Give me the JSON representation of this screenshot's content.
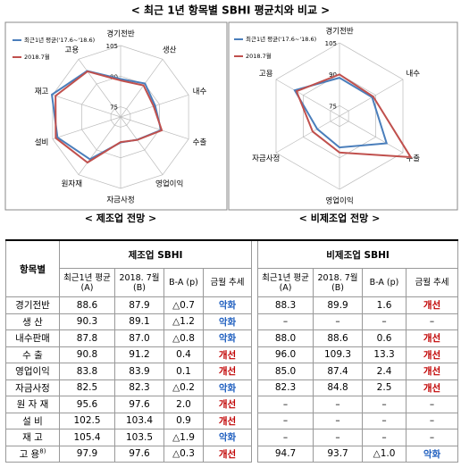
{
  "title": "< 최근 1년 항목별 SBHI 평균치와 비교 >",
  "chart_data": [
    {
      "type": "radar",
      "title": "< 제조업 전망 >",
      "categories": [
        "경기전반",
        "생산",
        "내수",
        "수출",
        "영업이익",
        "자금사정",
        "원자재",
        "설비",
        "재고",
        "고용"
      ],
      "series": [
        {
          "name": "최근1년 평균('17.6~'18.6)",
          "color": "#4a7ebb",
          "values": [
            88.6,
            90.3,
            87.8,
            90.8,
            83.8,
            82.5,
            95.6,
            102.5,
            105.4,
            97.9
          ]
        },
        {
          "name": "2018.7월",
          "color": "#c0504d",
          "values": [
            87.9,
            89.1,
            87.0,
            91.2,
            83.9,
            82.3,
            97.6,
            103.4,
            103.5,
            97.6
          ]
        }
      ],
      "ylim": [
        70,
        105
      ],
      "yticks": [
        75,
        90,
        105
      ],
      "grid": true
    },
    {
      "type": "radar",
      "title": "< 비제조업 전망 >",
      "categories": [
        "경기전반",
        "내수",
        "수출",
        "영업이익",
        "자금사정",
        "고용"
      ],
      "series": [
        {
          "name": "최근1년 평균('17.6~'18.6)",
          "color": "#4a7ebb",
          "values": [
            88.3,
            88.0,
            96.0,
            85.0,
            82.3,
            94.7
          ]
        },
        {
          "name": "2018.7월",
          "color": "#c0504d",
          "values": [
            89.9,
            88.6,
            109.3,
            87.4,
            84.8,
            93.7
          ]
        }
      ],
      "ylim": [
        70,
        105
      ],
      "yticks": [
        75,
        90,
        105
      ],
      "grid": true
    }
  ],
  "table": {
    "item_header": "항목별",
    "groups": [
      "제조업 SBHI",
      "비제조업 SBHI"
    ],
    "columns": [
      "최근1년 평균(A)",
      "2018. 7월(B)",
      "B-A (p)",
      "금월 추세"
    ],
    "trend_colors": {
      "악화": "#1f5fbf",
      "개선": "#c00000"
    },
    "rows": [
      {
        "label": "경기전반",
        "cells": [
          "88.6",
          "87.9",
          "△0.7",
          "악화",
          "88.3",
          "89.9",
          "1.6",
          "개선"
        ]
      },
      {
        "label": "생 산",
        "cells": [
          "90.3",
          "89.1",
          "△1.2",
          "악화",
          "–",
          "–",
          "–",
          "–"
        ]
      },
      {
        "label": "내수판매",
        "cells": [
          "87.8",
          "87.0",
          "△0.8",
          "악화",
          "88.0",
          "88.6",
          "0.6",
          "개선"
        ]
      },
      {
        "label": "수 출",
        "cells": [
          "90.8",
          "91.2",
          "0.4",
          "개선",
          "96.0",
          "109.3",
          "13.3",
          "개선"
        ]
      },
      {
        "label": "영업이익",
        "cells": [
          "83.8",
          "83.9",
          "0.1",
          "개선",
          "85.0",
          "87.4",
          "2.4",
          "개선"
        ]
      },
      {
        "label": "자금사정",
        "cells": [
          "82.5",
          "82.3",
          "△0.2",
          "악화",
          "82.3",
          "84.8",
          "2.5",
          "개선"
        ]
      },
      {
        "label": "원 자 재",
        "cells": [
          "95.6",
          "97.6",
          "2.0",
          "개선",
          "–",
          "–",
          "–",
          "–"
        ]
      },
      {
        "label": "설 비",
        "cells": [
          "102.5",
          "103.4",
          "0.9",
          "개선",
          "–",
          "–",
          "–",
          "–"
        ]
      },
      {
        "label": "재 고",
        "cells": [
          "105.4",
          "103.5",
          "△1.9",
          "악화",
          "–",
          "–",
          "–",
          "–"
        ]
      },
      {
        "label": "고 용",
        "note": "8)",
        "cells": [
          "97.9",
          "97.6",
          "△0.3",
          "개선",
          "94.7",
          "93.7",
          "△1.0",
          "악화"
        ]
      }
    ]
  }
}
